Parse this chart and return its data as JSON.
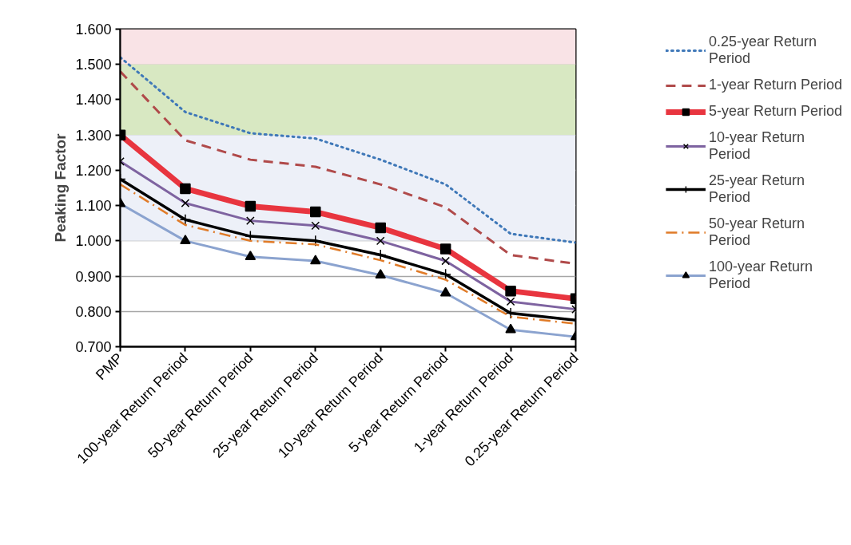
{
  "chart_data": {
    "type": "line",
    "ylabel": "Peaking Factor",
    "categories": [
      "PMP",
      "100-year Return Period",
      "50-year Return Period",
      "25-year Return Period",
      "10-year Return Period",
      "5-year Return Period",
      "1-year Return Period",
      "0.25-year Return Period"
    ],
    "series": [
      {
        "name": "0.25-year Return Period",
        "color": "#3f78b8",
        "marker": "none",
        "line_style": "dotted",
        "values": [
          1.52,
          1.365,
          1.305,
          1.29,
          1.23,
          1.16,
          1.02,
          0.995
        ]
      },
      {
        "name": "1-year Return Period",
        "color": "#b04a4a",
        "marker": "none",
        "line_style": "dashed",
        "values": [
          1.48,
          1.285,
          1.23,
          1.21,
          1.16,
          1.095,
          0.96,
          0.935
        ]
      },
      {
        "name": "5-year Return Period",
        "color": "#e8353f",
        "marker": "square",
        "line_style": "solid",
        "values": [
          1.3,
          1.148,
          1.098,
          1.082,
          1.037,
          0.977,
          0.858,
          0.836
        ]
      },
      {
        "name": "10-year Return Period",
        "color": "#7e63a0",
        "marker": "x",
        "line_style": "solid",
        "values": [
          1.225,
          1.107,
          1.057,
          1.043,
          1.0,
          0.943,
          0.828,
          0.806
        ]
      },
      {
        "name": "25-year Return Period",
        "color": "#000000",
        "marker": "cross",
        "line_style": "solid",
        "values": [
          1.175,
          1.06,
          1.013,
          1.0,
          0.96,
          0.905,
          0.795,
          0.775
        ]
      },
      {
        "name": "50-year Return Period",
        "color": "#e07b28",
        "marker": "none",
        "line_style": "dashdot",
        "values": [
          1.16,
          1.045,
          1.0,
          0.99,
          0.945,
          0.89,
          0.785,
          0.765
        ]
      },
      {
        "name": "100-year Return Period",
        "color": "#8ba3cf",
        "marker": "triangle",
        "line_style": "solid",
        "values": [
          1.105,
          1.0,
          0.955,
          0.943,
          0.903,
          0.852,
          0.748,
          0.728
        ]
      }
    ],
    "ylim": [
      0.7,
      1.6
    ],
    "yticks": [
      {
        "value": 0.7,
        "label": "0.700"
      },
      {
        "value": 0.8,
        "label": "0.800"
      },
      {
        "value": 0.9,
        "label": "0.900"
      },
      {
        "value": 1.0,
        "label": "1.000"
      },
      {
        "value": 1.1,
        "label": "1.100"
      },
      {
        "value": 1.2,
        "label": "1.200"
      },
      {
        "value": 1.3,
        "label": "1.300"
      },
      {
        "value": 1.4,
        "label": "1.400"
      },
      {
        "value": 1.5,
        "label": "1.500"
      },
      {
        "value": 1.6,
        "label": "1.600"
      }
    ],
    "bands": [
      {
        "axis": "y",
        "from": 1.5,
        "to": 1.6,
        "color": "#f9e3e6"
      },
      {
        "axis": "y",
        "from": 1.3,
        "to": 1.5,
        "color": "#d8e8c2"
      },
      {
        "axis": "y",
        "from": 1.0,
        "to": 1.3,
        "color": "#edf0f8"
      }
    ],
    "grid": "y",
    "legend": "right"
  }
}
